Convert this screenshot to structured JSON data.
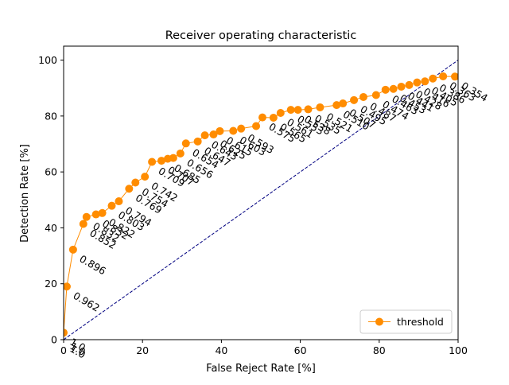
{
  "chart_data": {
    "type": "line",
    "title": "Receiver operating characteristic",
    "xlabel": "False Reject Rate [%]",
    "ylabel": "Detection Rate [%]",
    "xlim": [
      0,
      100
    ],
    "ylim": [
      0,
      105
    ],
    "x_ticks": [
      "0",
      "20",
      "40",
      "60",
      "80",
      "100"
    ],
    "y_ticks": [
      "0",
      "20",
      "40",
      "60",
      "80",
      "100"
    ],
    "grid": false,
    "legend": {
      "position": "bottom-right",
      "entries": [
        "threshold"
      ]
    },
    "colors": {
      "series": "#ff8c00",
      "diagonal": "#000080"
    },
    "series": [
      {
        "name": "threshold",
        "x": [
          0,
          0.8,
          2.4,
          5.0,
          5.8,
          8.2,
          9.8,
          12.2,
          14.0,
          16.6,
          18.2,
          20.6,
          22.4,
          24.8,
          26.4,
          27.8,
          29.6,
          31.0,
          34.0,
          35.8,
          38.0,
          39.6,
          43.0,
          45.0,
          48.8,
          50.4,
          53.2,
          55.0,
          57.6,
          59.4,
          62.0,
          65.0,
          69.2,
          70.8,
          73.6,
          76.0,
          79.2,
          81.6,
          83.6,
          85.6,
          87.6,
          89.6,
          91.6,
          93.6,
          96.2,
          99.2
        ],
        "y": [
          2.5,
          19.0,
          32.2,
          41.4,
          43.9,
          44.8,
          45.3,
          47.9,
          49.5,
          54.0,
          56.2,
          58.3,
          63.6,
          64.0,
          64.7,
          65.0,
          66.6,
          70.2,
          70.9,
          73.1,
          73.4,
          74.6,
          74.7,
          75.5,
          76.4,
          79.5,
          79.4,
          81.1,
          82.2,
          82.2,
          82.4,
          83.1,
          83.9,
          84.5,
          85.7,
          86.8,
          87.5,
          89.4,
          89.7,
          90.5,
          91.1,
          92.0,
          92.4,
          93.4,
          94.2,
          94.1
        ]
      },
      {
        "name": "",
        "style": "dashed",
        "x": [
          0,
          100
        ],
        "y": [
          0,
          100
        ]
      }
    ],
    "annotations": [
      {
        "text": "0.962",
        "x": 0.8,
        "y": 19.0
      },
      {
        "text": "0.896",
        "x": 2.4,
        "y": 32.2
      },
      {
        "text": "0.852",
        "x": 5.0,
        "y": 41.4
      },
      {
        "text": "0.832",
        "x": 5.8,
        "y": 43.9
      },
      {
        "text": "0.832",
        "x": 8.2,
        "y": 44.8
      },
      {
        "text": "0.822",
        "x": 9.8,
        "y": 45.3
      },
      {
        "text": "0.803",
        "x": 12.2,
        "y": 47.9
      },
      {
        "text": "0.794",
        "x": 14.0,
        "y": 49.5
      },
      {
        "text": "0.769",
        "x": 16.6,
        "y": 54.0
      },
      {
        "text": "0.754",
        "x": 18.2,
        "y": 56.2
      },
      {
        "text": "0.742",
        "x": 20.6,
        "y": 58.3
      },
      {
        "text": "0.709",
        "x": 22.4,
        "y": 63.6
      },
      {
        "text": "0.707",
        "x": 24.8,
        "y": 64.0
      },
      {
        "text": "0.685",
        "x": 26.4,
        "y": 64.7
      },
      {
        "text": "0.656",
        "x": 29.6,
        "y": 66.6
      },
      {
        "text": "0.654",
        "x": 31.0,
        "y": 70.2
      },
      {
        "text": "0.647",
        "x": 34.0,
        "y": 70.9
      },
      {
        "text": "0.643",
        "x": 35.8,
        "y": 73.1
      },
      {
        "text": "0.625",
        "x": 38.0,
        "y": 73.4
      },
      {
        "text": "0.615",
        "x": 39.6,
        "y": 74.6
      },
      {
        "text": "0.603",
        "x": 43.0,
        "y": 74.7
      },
      {
        "text": "0.593",
        "x": 45.0,
        "y": 75.5
      },
      {
        "text": "0.575",
        "x": 50.4,
        "y": 79.5
      },
      {
        "text": "0.565",
        "x": 53.2,
        "y": 79.4
      },
      {
        "text": "0.561",
        "x": 55.0,
        "y": 81.1
      },
      {
        "text": "0.553",
        "x": 57.6,
        "y": 82.2
      },
      {
        "text": "0.538",
        "x": 59.4,
        "y": 82.2
      },
      {
        "text": "0.535",
        "x": 62.0,
        "y": 82.4
      },
      {
        "text": "0.521",
        "x": 65.0,
        "y": 83.1
      },
      {
        "text": "0.510",
        "x": 69.2,
        "y": 83.9
      },
      {
        "text": "0.507",
        "x": 70.8,
        "y": 84.5
      },
      {
        "text": "0.495",
        "x": 73.6,
        "y": 85.7
      },
      {
        "text": "0.487",
        "x": 76.0,
        "y": 86.8
      },
      {
        "text": "0.474",
        "x": 79.2,
        "y": 87.5
      },
      {
        "text": "0.463",
        "x": 81.6,
        "y": 89.4
      },
      {
        "text": "0.453",
        "x": 83.6,
        "y": 89.7
      },
      {
        "text": "0.441",
        "x": 85.6,
        "y": 90.5
      },
      {
        "text": "0.428",
        "x": 87.6,
        "y": 91.1
      },
      {
        "text": "0.416",
        "x": 89.6,
        "y": 92.0
      },
      {
        "text": "0.405",
        "x": 91.6,
        "y": 92.4
      },
      {
        "text": "0.386",
        "x": 93.6,
        "y": 93.4
      },
      {
        "text": "0.363",
        "x": 96.2,
        "y": 94.2
      },
      {
        "text": "0.354",
        "x": 99.2,
        "y": 94.1
      },
      {
        "text": "1.0",
        "x": 0,
        "y": 2.5
      },
      {
        "text": "1.0",
        "x": 0,
        "y": 1.0
      },
      {
        "text": "1.0",
        "x": 0,
        "y": 0.0
      }
    ]
  }
}
